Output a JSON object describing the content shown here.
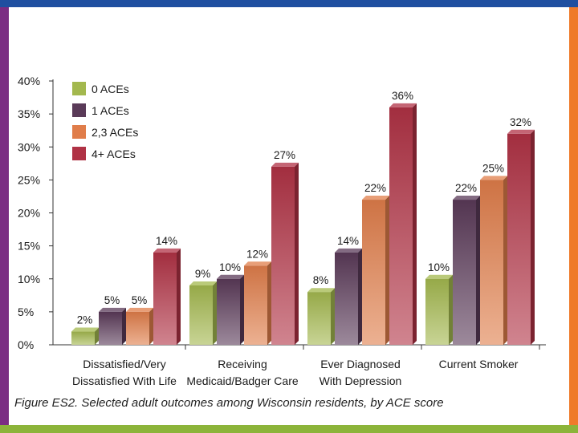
{
  "colors": {
    "frame_top": "#1f4fa0",
    "frame_left": "#7b2d83",
    "frame_right": "#ef7a2a",
    "frame_bottom": "#8cb43a"
  },
  "caption": "Figure ES2. Selected adult outcomes among Wisconsin residents, by ACE score",
  "chart_data": {
    "type": "bar",
    "title": "",
    "xlabel": "",
    "ylabel": "",
    "ylim": [
      0,
      40
    ],
    "yticks": [
      "0%",
      "5%",
      "10%",
      "15%",
      "20%",
      "25%",
      "30%",
      "35%",
      "40%"
    ],
    "categories": [
      [
        "Dissatisfied/Very",
        "Dissatisfied With Life"
      ],
      [
        "Receiving",
        "Medicaid/Badger Care"
      ],
      [
        "Ever Diagnosed",
        "With Depression"
      ],
      [
        "Current Smoker"
      ]
    ],
    "series": [
      {
        "name": "0 ACEs",
        "color": "#a3b84e",
        "values": [
          2,
          9,
          8,
          10
        ],
        "labels": [
          "2%",
          "9%",
          "8%",
          "10%"
        ]
      },
      {
        "name": "1 ACEs",
        "color": "#5a3a58",
        "values": [
          5,
          10,
          14,
          22
        ],
        "labels": [
          "5%",
          "10%",
          "14%",
          "22%"
        ]
      },
      {
        "name": "2,3 ACEs",
        "color": "#e07d4a",
        "values": [
          5,
          12,
          22,
          25
        ],
        "labels": [
          "5%",
          "12%",
          "22%",
          "25%"
        ]
      },
      {
        "name": "4+ ACEs",
        "color": "#b03245",
        "values": [
          14,
          27,
          36,
          32
        ],
        "labels": [
          "14%",
          "27%",
          "36%",
          "32%"
        ]
      }
    ],
    "legend_position": "top-left"
  }
}
